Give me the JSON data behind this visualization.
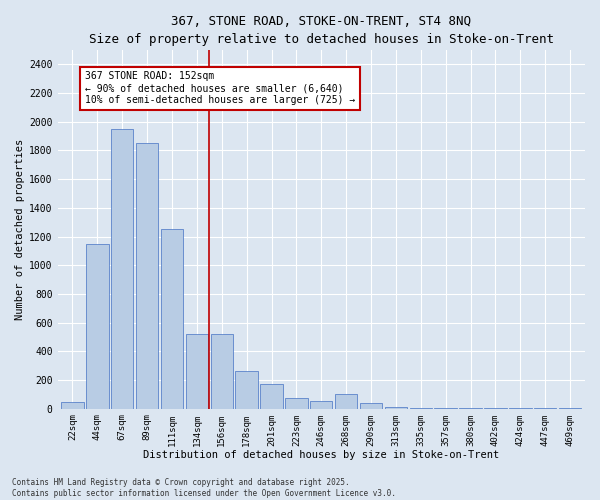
{
  "title_line1": "367, STONE ROAD, STOKE-ON-TRENT, ST4 8NQ",
  "title_line2": "Size of property relative to detached houses in Stoke-on-Trent",
  "xlabel": "Distribution of detached houses by size in Stoke-on-Trent",
  "ylabel": "Number of detached properties",
  "categories": [
    "22sqm",
    "44sqm",
    "67sqm",
    "89sqm",
    "111sqm",
    "134sqm",
    "156sqm",
    "178sqm",
    "201sqm",
    "223sqm",
    "246sqm",
    "268sqm",
    "290sqm",
    "313sqm",
    "335sqm",
    "357sqm",
    "380sqm",
    "402sqm",
    "424sqm",
    "447sqm",
    "469sqm"
  ],
  "values": [
    50,
    1150,
    1950,
    1850,
    1250,
    520,
    520,
    260,
    170,
    75,
    55,
    100,
    40,
    10,
    5,
    5,
    5,
    3,
    3,
    2,
    2
  ],
  "bar_color": "#b8cce4",
  "bar_edge_color": "#4472c4",
  "vline_x_index": 5.5,
  "vline_color": "#c00000",
  "annotation_text": "367 STONE ROAD: 152sqm\n← 90% of detached houses are smaller (6,640)\n10% of semi-detached houses are larger (725) →",
  "annotation_box_color": "#ffffff",
  "annotation_box_edge": "#c00000",
  "ylim": [
    0,
    2500
  ],
  "yticks": [
    0,
    200,
    400,
    600,
    800,
    1000,
    1200,
    1400,
    1600,
    1800,
    2000,
    2200,
    2400
  ],
  "background_color": "#dce6f1",
  "plot_bg_color": "#dce6f1",
  "footer_line1": "Contains HM Land Registry data © Crown copyright and database right 2025.",
  "footer_line2": "Contains public sector information licensed under the Open Government Licence v3.0."
}
